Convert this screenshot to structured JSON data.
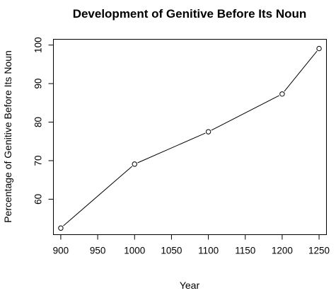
{
  "chart_data": {
    "type": "line",
    "title": "Development of Genitive Before Its Noun",
    "xlabel": "Year",
    "ylabel": "Percentage of Genitive Before Its Noun",
    "x": [
      900,
      1000,
      1100,
      1200,
      1250
    ],
    "series": [
      {
        "values": [
          52.5,
          69.1,
          77.5,
          87.3,
          99.1
        ]
      }
    ],
    "xlim": [
      890,
      1260
    ],
    "ylim": [
      50.8,
      101.5
    ],
    "xticks": [
      900,
      950,
      1000,
      1050,
      1100,
      1150,
      1200,
      1250
    ],
    "yticks": [
      60,
      70,
      80,
      90,
      100
    ],
    "grid": false,
    "marker": "open-circle",
    "line_color": "#000000"
  }
}
